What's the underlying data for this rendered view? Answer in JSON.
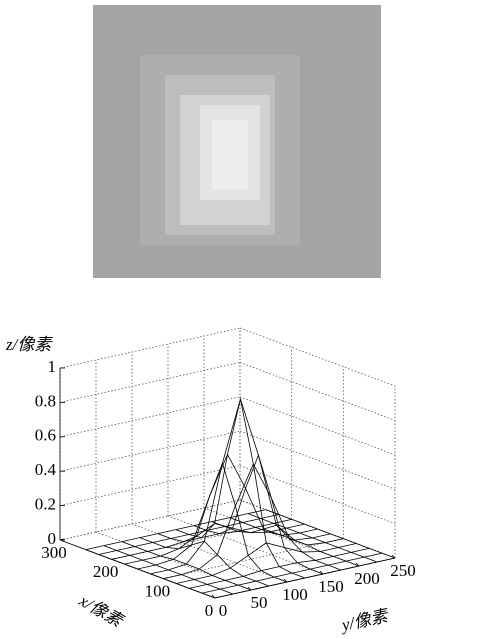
{
  "chart_data": {
    "type": "surface3d",
    "zlabel": "z/像素",
    "xlabel": "x/像素",
    "ylabel": "y/像素",
    "xlim": [
      0,
      300
    ],
    "ylim": [
      0,
      250
    ],
    "zlim": [
      0,
      1
    ],
    "xticks": [
      0,
      100,
      200,
      300
    ],
    "yticks": [
      0,
      50,
      100,
      150,
      200,
      250
    ],
    "zticks": [
      0,
      0.2,
      0.4,
      0.6,
      0.8,
      1
    ],
    "grid": true,
    "color": "#000000",
    "x": [
      0,
      25,
      50,
      75,
      100,
      125,
      150,
      175,
      200,
      225,
      250
    ],
    "y": [
      0,
      25,
      50,
      75,
      100,
      125,
      150,
      175,
      200,
      225,
      250
    ],
    "z": [
      [
        0,
        0,
        0,
        0,
        0,
        0,
        0,
        0,
        0,
        0,
        0
      ],
      [
        0,
        0,
        0,
        0,
        0,
        0,
        0,
        0,
        0,
        0,
        0
      ],
      [
        0,
        0,
        0,
        0,
        0.01,
        0.01,
        0.01,
        0,
        0,
        0,
        0
      ],
      [
        0,
        0,
        0,
        0.02,
        0.07,
        0.12,
        0.07,
        0.02,
        0,
        0,
        0
      ],
      [
        0,
        0,
        0.01,
        0.07,
        0.33,
        0.55,
        0.33,
        0.07,
        0.01,
        0,
        0
      ],
      [
        0,
        0,
        0.01,
        0.12,
        0.55,
        0.9,
        0.55,
        0.12,
        0.01,
        0,
        0
      ],
      [
        0,
        0,
        0.01,
        0.07,
        0.33,
        0.55,
        0.33,
        0.07,
        0.01,
        0,
        0
      ],
      [
        0,
        0,
        0,
        0.02,
        0.07,
        0.12,
        0.07,
        0.02,
        0,
        0,
        0
      ],
      [
        0,
        0,
        0,
        0,
        0.01,
        0.01,
        0.01,
        0,
        0,
        0,
        0
      ],
      [
        0,
        0,
        0,
        0,
        0,
        0,
        0,
        0,
        0,
        0,
        0
      ],
      [
        0,
        0,
        0,
        0,
        0,
        0,
        0,
        0,
        0,
        0,
        0
      ]
    ]
  }
}
